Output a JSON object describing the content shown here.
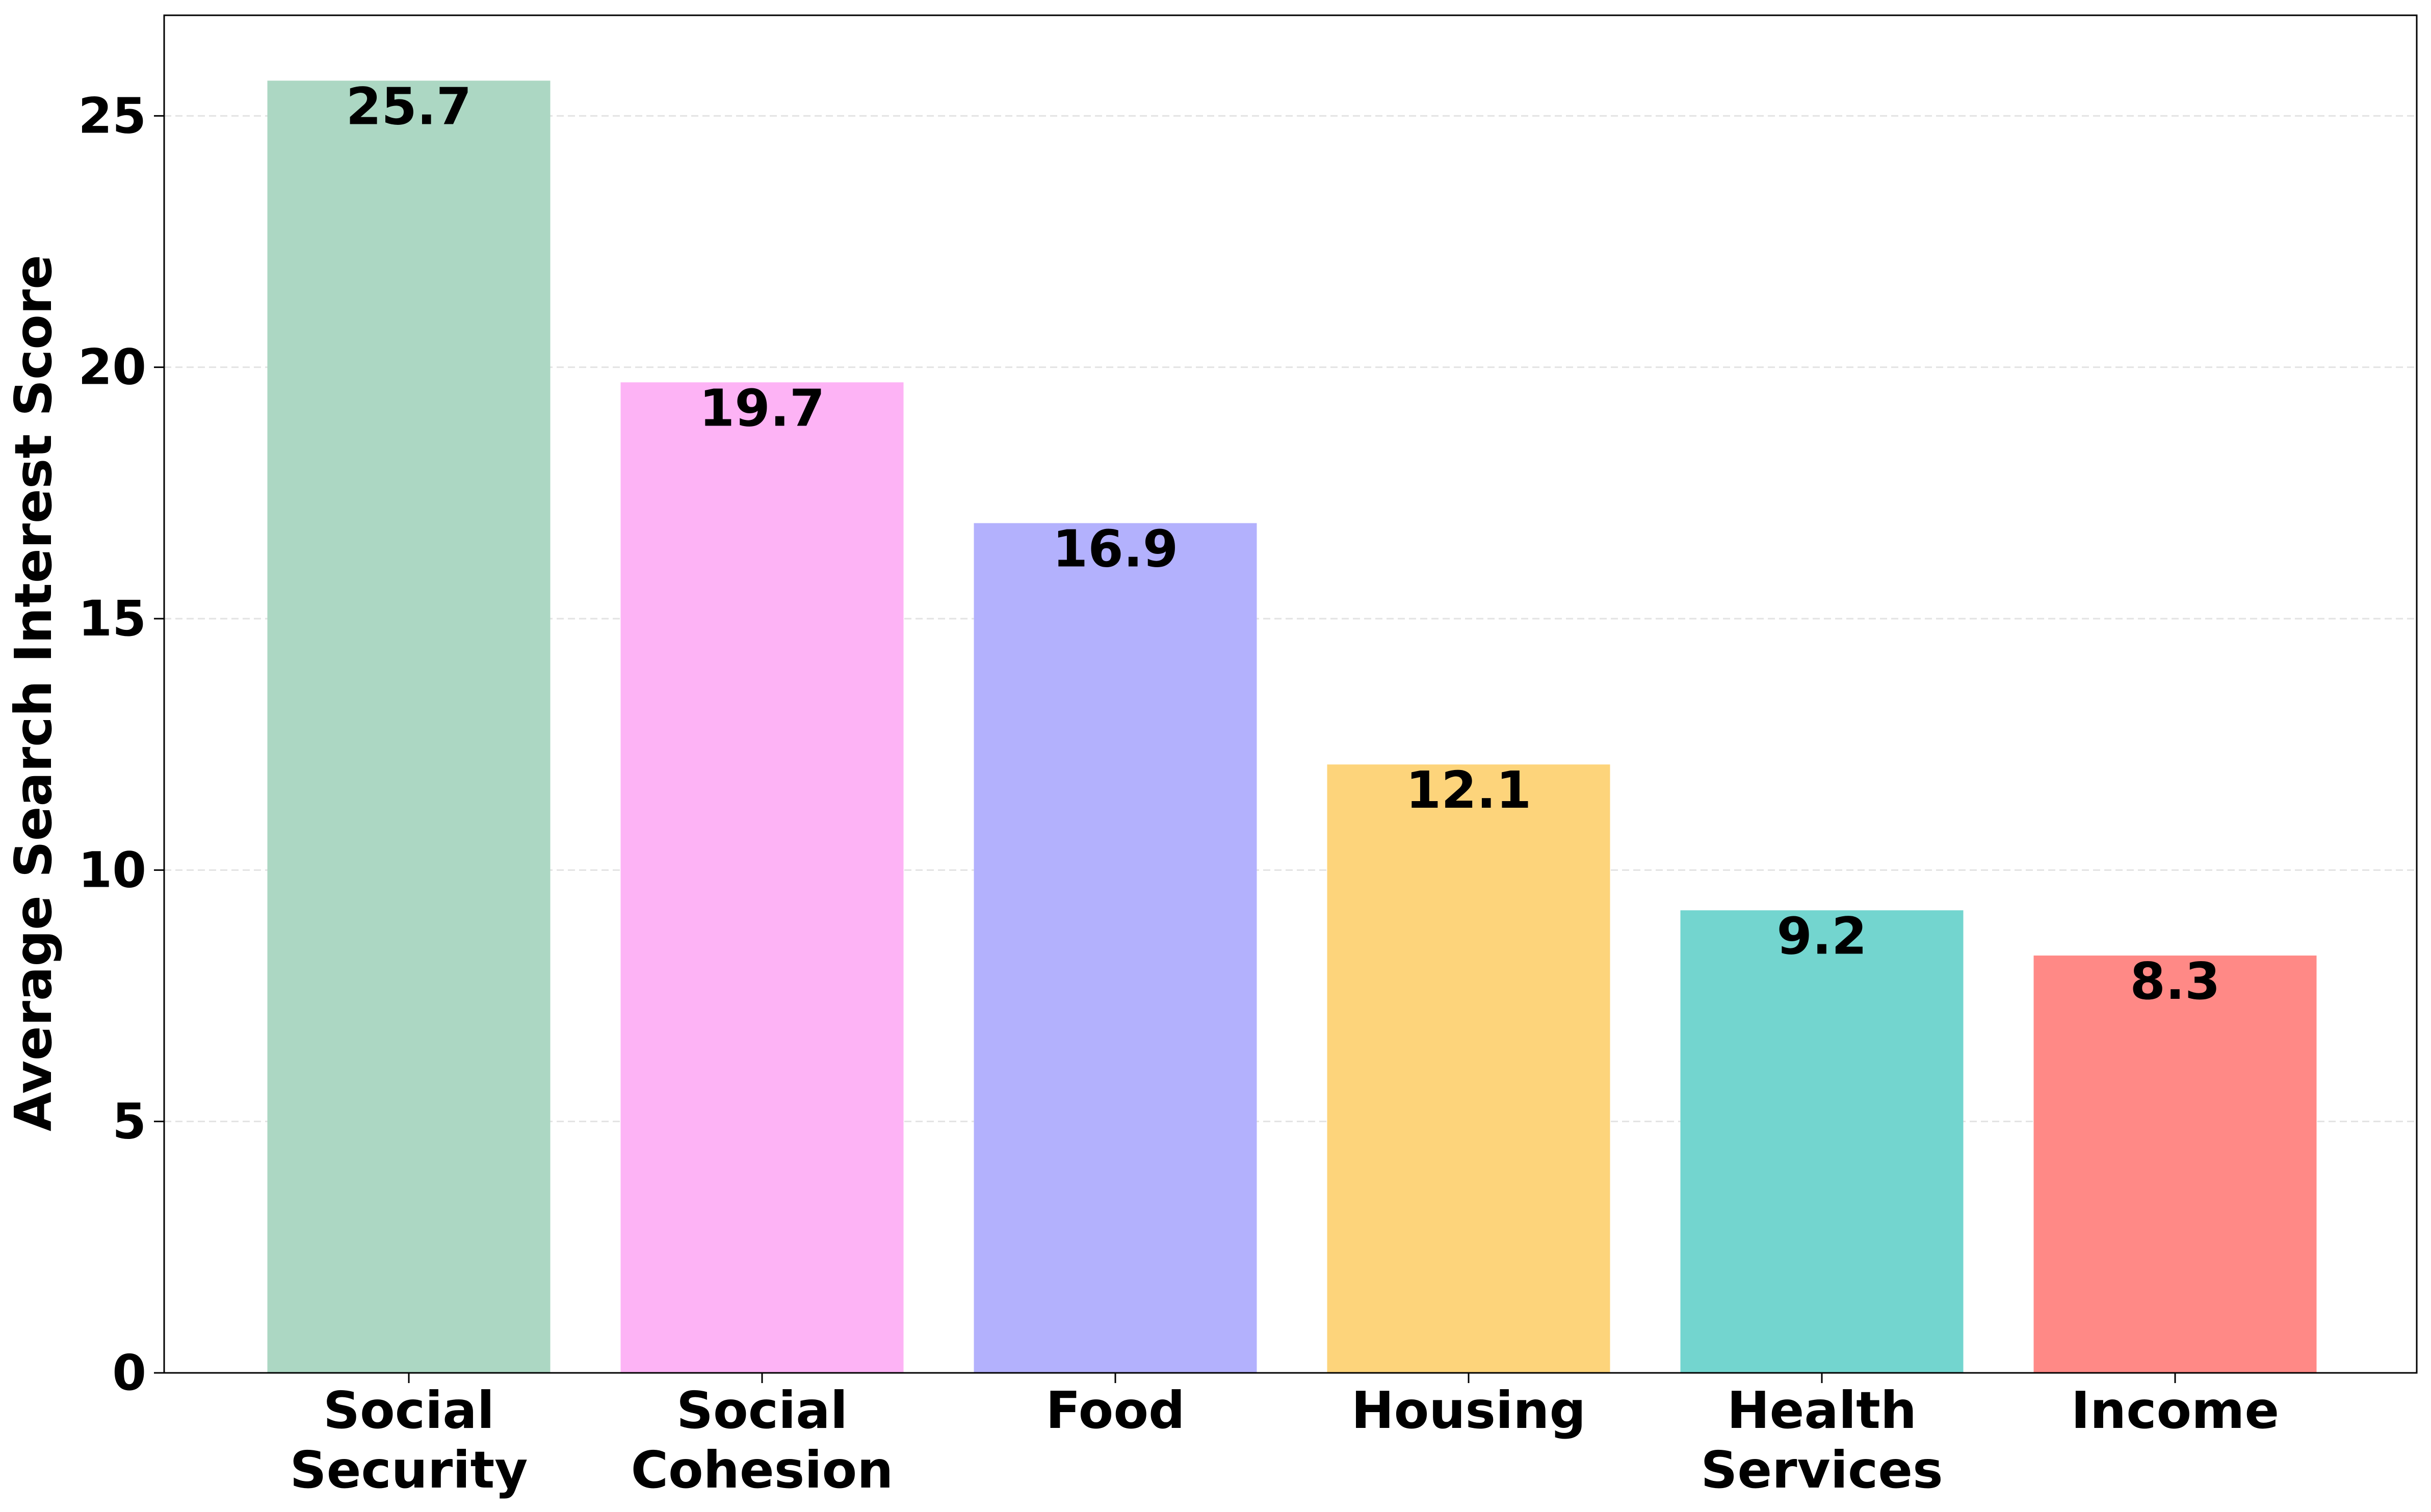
{
  "chart_data": {
    "type": "bar",
    "title": "",
    "xlabel": "",
    "ylabel": "Average Search Interest Score",
    "ylim": [
      0,
      27
    ],
    "yticks": [
      0,
      5,
      10,
      15,
      20,
      25
    ],
    "grid": {
      "y": true,
      "x": false,
      "style": "dashed"
    },
    "legend": "none",
    "categories": [
      [
        "Social",
        "Security"
      ],
      [
        "Social",
        "Cohesion"
      ],
      [
        "Food"
      ],
      [
        "Housing"
      ],
      [
        "Health",
        "Services"
      ],
      [
        "Income"
      ]
    ],
    "values": [
      25.7,
      19.7,
      16.9,
      12.1,
      9.2,
      8.3
    ],
    "value_labels": [
      "25.7",
      "19.7",
      "16.9",
      "12.1",
      "9.2",
      "8.3"
    ],
    "colors": [
      "#acd7c3",
      "#fdb3f5",
      "#b3b1fd",
      "#fdd47b",
      "#73d5cf",
      "#ff8986"
    ]
  }
}
